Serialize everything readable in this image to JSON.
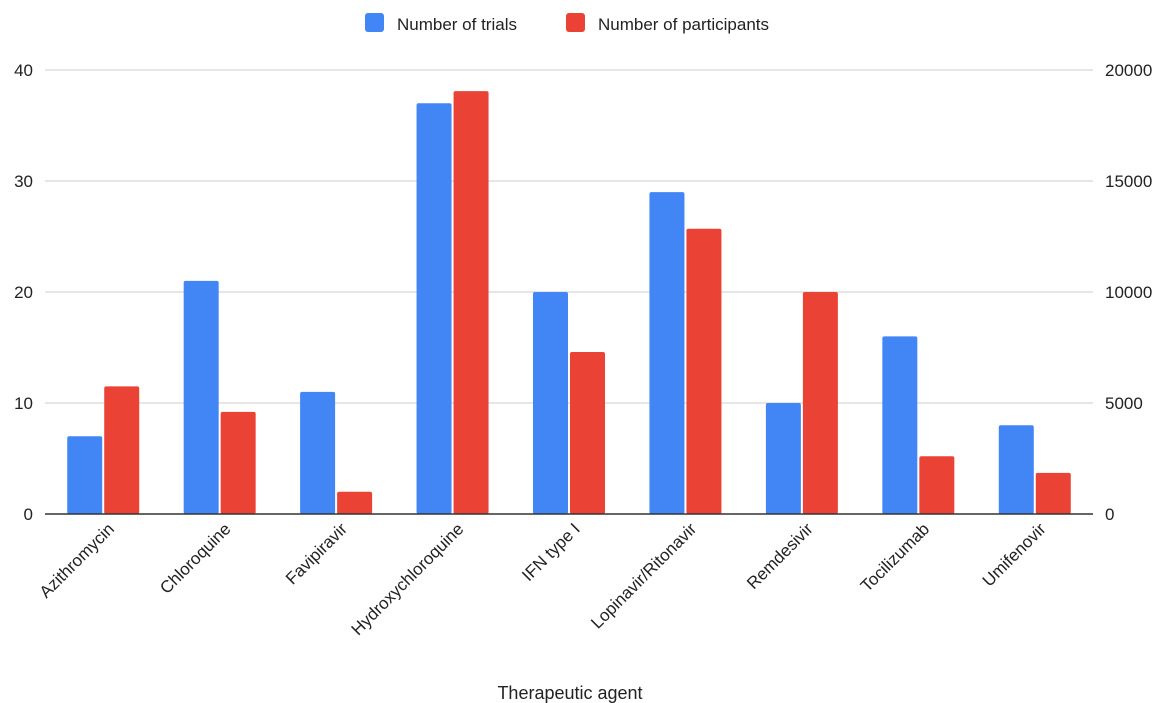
{
  "chart_data": {
    "type": "bar",
    "title": "",
    "xlabel": "Therapeutic agent",
    "ylabel_left": "",
    "ylabel_right": "",
    "categories": [
      "Azithromycin",
      "Chloroquine",
      "Favipiravir",
      "Hydroxychloroquine",
      "IFN type I",
      "Lopinavir/Ritonavir",
      "Remdesivir",
      "Tocilizumab",
      "Umifenovir"
    ],
    "series": [
      {
        "name": "Number of trials",
        "axis": "left",
        "color": "#4285f4",
        "values": [
          7,
          21,
          11,
          37,
          20,
          29,
          10,
          16,
          8
        ]
      },
      {
        "name": "Number of participants",
        "axis": "right",
        "color": "#ea4335",
        "values": [
          5750,
          4600,
          1000,
          19050,
          7300,
          12850,
          10000,
          2600,
          1850
        ]
      }
    ],
    "ylim_left": [
      0,
      40
    ],
    "ylim_right": [
      0,
      20000
    ],
    "yticks_left": [
      "0",
      "10",
      "20",
      "30",
      "40"
    ],
    "yticks_right": [
      "0",
      "5000",
      "10000",
      "15000",
      "20000"
    ],
    "grid": true,
    "legend_position": "top"
  }
}
